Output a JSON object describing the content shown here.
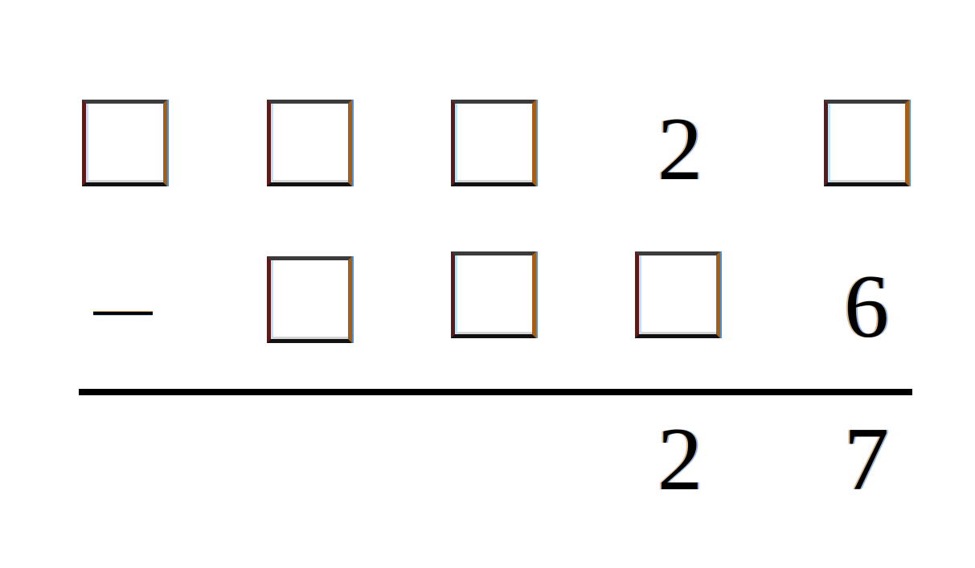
{
  "problem": {
    "operator_symbol": "−",
    "top_row": {
      "d1": "",
      "d2": "",
      "d3": "",
      "d4": "2",
      "d5": ""
    },
    "second_row": {
      "d2": "",
      "d3": "",
      "d4": "",
      "d5": "6"
    },
    "result_row": {
      "d4": "2",
      "d5": "7"
    }
  }
}
